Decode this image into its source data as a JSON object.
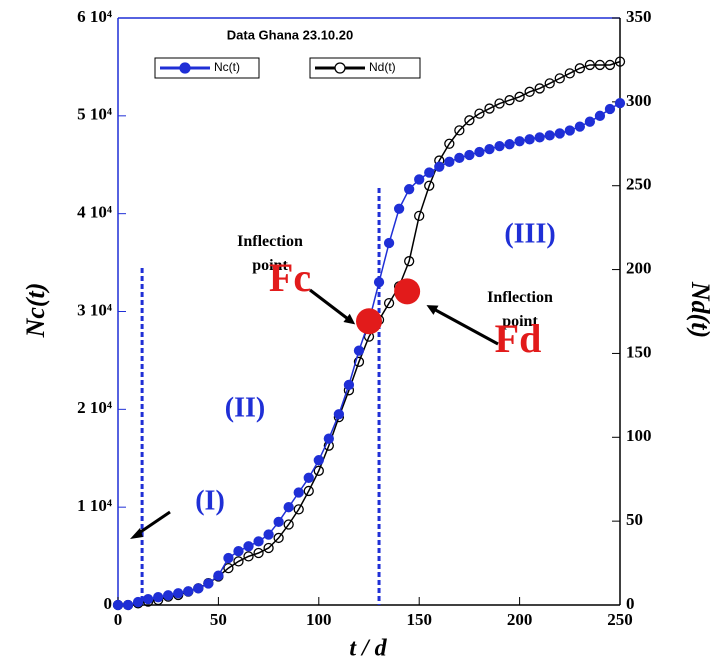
{
  "chart_data": {
    "type": "scatter",
    "title": "Data Ghana 23.10.20",
    "xlabel": "t / d",
    "ylabel": "Nc(t)",
    "y2label": "Nd(t)",
    "xlim": [
      0,
      250
    ],
    "xticks": [
      0,
      50,
      100,
      150,
      200,
      250
    ],
    "ylim": [
      0,
      60000
    ],
    "yticks": [
      0,
      {
        "value": 10000,
        "label": "1 10⁴"
      },
      {
        "value": 20000,
        "label": "2 10⁴"
      },
      {
        "value": 30000,
        "label": "3 10⁴"
      },
      {
        "value": 40000,
        "label": "4 10⁴"
      },
      {
        "value": 50000,
        "label": "5 10⁴"
      },
      {
        "value": 60000,
        "label": "6 10⁴"
      }
    ],
    "y2lim": [
      0,
      350
    ],
    "y2ticks": [
      0,
      50,
      100,
      150,
      200,
      250,
      300,
      350
    ],
    "x": [
      0,
      5,
      10,
      15,
      20,
      25,
      30,
      35,
      40,
      45,
      50,
      55,
      60,
      65,
      70,
      75,
      80,
      85,
      90,
      95,
      100,
      105,
      110,
      115,
      120,
      125,
      130,
      135,
      140,
      145,
      150,
      155,
      160,
      165,
      170,
      175,
      180,
      185,
      190,
      195,
      200,
      205,
      210,
      215,
      220,
      225,
      230,
      235,
      240,
      245,
      250
    ],
    "series": [
      {
        "name": "Nc(t)",
        "color": "#1f2fd6",
        "marker": "filled",
        "values": [
          0,
          0,
          300,
          600,
          800,
          1000,
          1200,
          1400,
          1700,
          2200,
          3000,
          4800,
          5500,
          6000,
          6500,
          7200,
          8500,
          10000,
          11500,
          13000,
          14800,
          17000,
          19500,
          22500,
          26000,
          29000,
          33000,
          37000,
          40500,
          42500,
          43500,
          44200,
          44800,
          45300,
          45700,
          46000,
          46300,
          46600,
          46900,
          47100,
          47400,
          47600,
          47800,
          48000,
          48200,
          48500,
          48900,
          49400,
          50000,
          50700,
          51300
        ]
      },
      {
        "name": "Nd(t)",
        "color": "#000000",
        "marker": "open",
        "axis": "y2",
        "values": [
          0,
          0,
          1,
          2,
          3,
          5,
          6,
          8,
          10,
          13,
          17,
          22,
          26,
          29,
          31,
          34,
          40,
          48,
          57,
          68,
          80,
          95,
          112,
          128,
          145,
          160,
          170,
          180,
          190,
          205,
          232,
          250,
          265,
          275,
          283,
          289,
          293,
          296,
          299,
          301,
          303,
          306,
          308,
          311,
          314,
          317,
          320,
          322,
          322,
          322,
          324
        ]
      }
    ],
    "phase_boundaries": [
      12,
      130
    ],
    "phase_labels": [
      "(I)",
      "(II)",
      "(III)"
    ],
    "inflection_points": [
      {
        "label": "Fc",
        "note": "Inflection point",
        "x": 125,
        "y": 29000
      },
      {
        "label": "Fd",
        "note": "Inflection point",
        "x": 144,
        "y": 187,
        "axis": "y2"
      }
    ]
  }
}
